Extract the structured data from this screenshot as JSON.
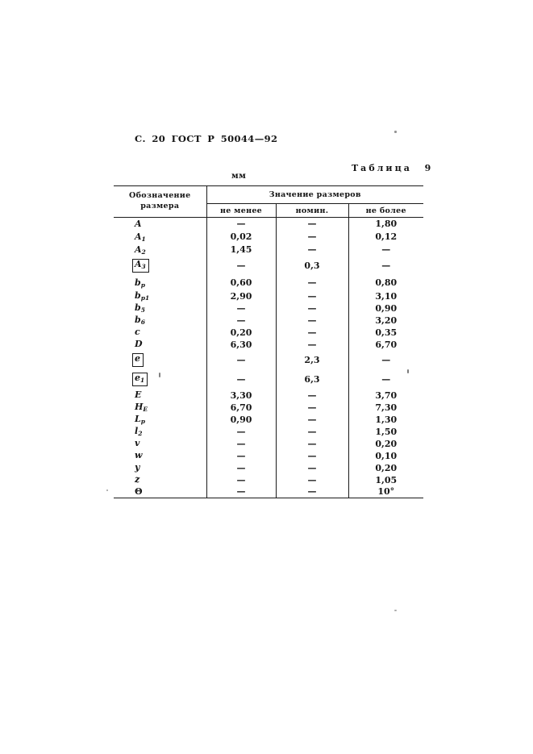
{
  "page": {
    "header": "С. 20 ГОСТ Р 50044—92",
    "table_caption": "Таблица 9",
    "unit_label": "мм"
  },
  "table": {
    "col1_header": "Обозначение размера",
    "group_header": "Значение размеров",
    "sub_headers": [
      "не менее",
      "номин.",
      "не более"
    ],
    "rows": [
      {
        "base": "A",
        "sub": "",
        "boxed": false,
        "upright": false,
        "min": "—",
        "nom": "—",
        "max": "1,80"
      },
      {
        "base": "A",
        "sub": "1",
        "boxed": false,
        "upright": false,
        "min": "0,02",
        "nom": "—",
        "max": "0,12"
      },
      {
        "base": "A",
        "sub": "2",
        "boxed": false,
        "upright": false,
        "min": "1,45",
        "nom": "—",
        "max": "—"
      },
      {
        "base": "A",
        "sub": "3",
        "boxed": true,
        "upright": false,
        "min": "—",
        "nom": "0,3",
        "max": "—"
      },
      {
        "base": "b",
        "sub": "p",
        "boxed": false,
        "upright": false,
        "min": "0,60",
        "nom": "—",
        "max": "0,80"
      },
      {
        "base": "b",
        "sub": "p1",
        "boxed": false,
        "upright": false,
        "min": "2,90",
        "nom": "—",
        "max": "3,10"
      },
      {
        "base": "b",
        "sub": "5",
        "boxed": false,
        "upright": false,
        "min": "—",
        "nom": "—",
        "max": "0,90"
      },
      {
        "base": "b",
        "sub": "6",
        "boxed": false,
        "upright": false,
        "min": "—",
        "nom": "—",
        "max": "3,20"
      },
      {
        "base": "c",
        "sub": "",
        "boxed": false,
        "upright": false,
        "min": "0,20",
        "nom": "—",
        "max": "0,35"
      },
      {
        "base": "D",
        "sub": "",
        "boxed": false,
        "upright": false,
        "min": "6,30",
        "nom": "—",
        "max": "6,70"
      },
      {
        "base": "e",
        "sub": "",
        "boxed": true,
        "upright": false,
        "min": "—",
        "nom": "2,3",
        "max": "—"
      },
      {
        "base": "e",
        "sub": "1",
        "boxed": true,
        "upright": false,
        "min": "—",
        "nom": "6,3",
        "max": "—"
      },
      {
        "base": "E",
        "sub": "",
        "boxed": false,
        "upright": false,
        "min": "3,30",
        "nom": "—",
        "max": "3,70"
      },
      {
        "base": "H",
        "sub": "E",
        "boxed": false,
        "upright": false,
        "min": "6,70",
        "nom": "—",
        "max": "7,30"
      },
      {
        "base": "L",
        "sub": "p",
        "boxed": false,
        "upright": false,
        "min": "0,90",
        "nom": "—",
        "max": "1,30"
      },
      {
        "base": "l",
        "sub": "2",
        "boxed": false,
        "upright": false,
        "min": "—",
        "nom": "—",
        "max": "1,50"
      },
      {
        "base": "v",
        "sub": "",
        "boxed": false,
        "upright": false,
        "min": "—",
        "nom": "—",
        "max": "0,20"
      },
      {
        "base": "w",
        "sub": "",
        "boxed": false,
        "upright": false,
        "min": "—",
        "nom": "—",
        "max": "0,10"
      },
      {
        "base": "y",
        "sub": "",
        "boxed": false,
        "upright": false,
        "min": "—",
        "nom": "—",
        "max": "0,20"
      },
      {
        "base": "z",
        "sub": "",
        "boxed": false,
        "upright": false,
        "min": "—",
        "nom": "—",
        "max": "1,05"
      },
      {
        "base": "Θ",
        "sub": "",
        "boxed": false,
        "upright": true,
        "min": "—",
        "nom": "—",
        "max": "10°"
      }
    ]
  }
}
